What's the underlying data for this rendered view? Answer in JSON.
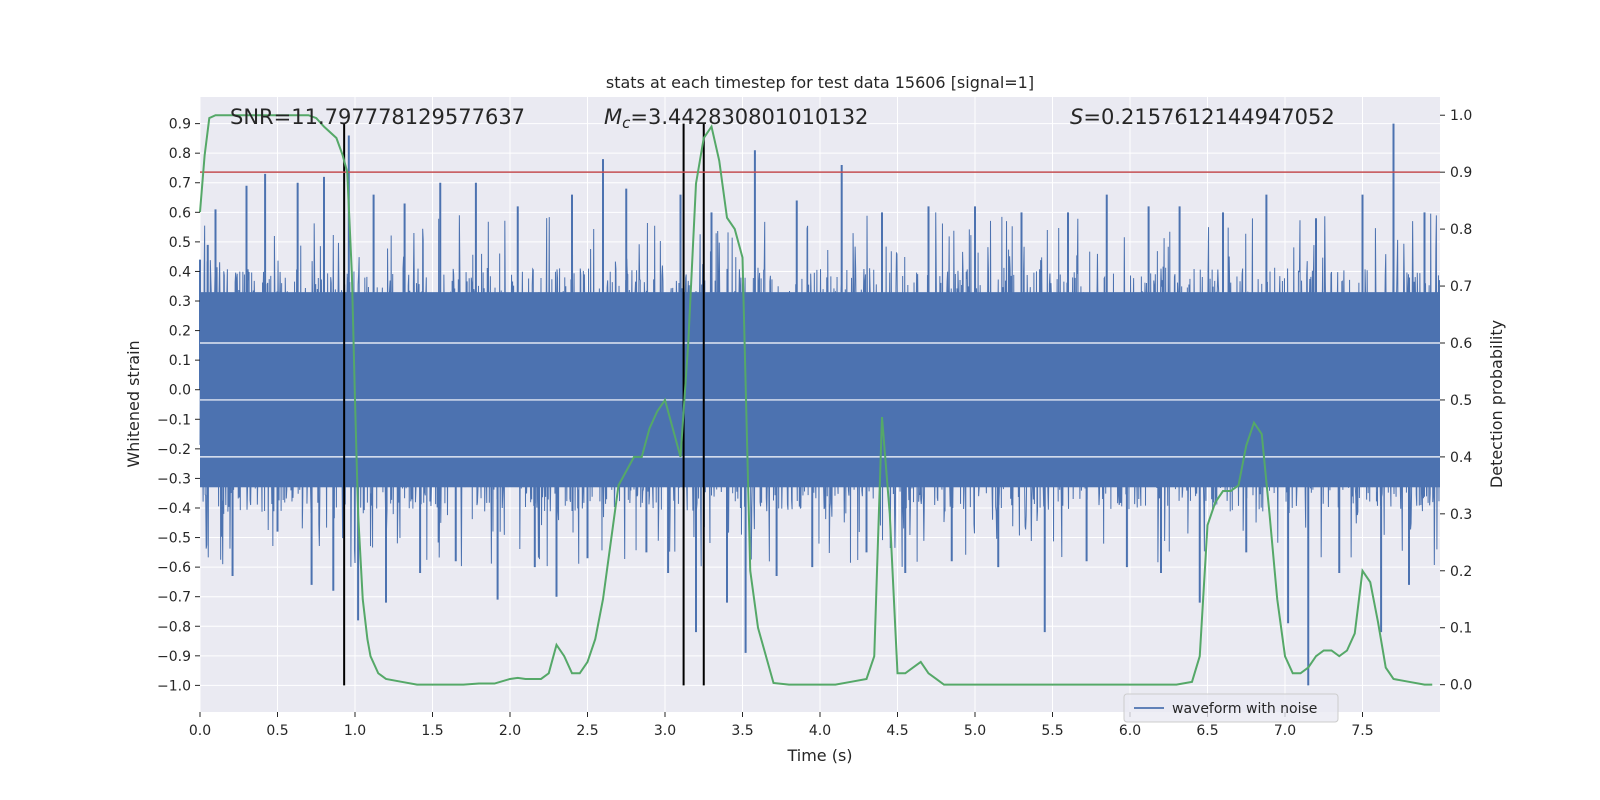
{
  "chart_data": {
    "type": "line",
    "title": "stats at each timestep for test data 15606 [signal=1]",
    "xlabel": "Time (s)",
    "ylabel": "Whitened strain",
    "y2label": "Detection probability",
    "xlim": [
      0.0,
      8.0
    ],
    "ylim": [
      -1.09,
      0.99
    ],
    "y2lim": [
      -0.048,
      1.032
    ],
    "x_ticks": [
      0.0,
      0.5,
      1.0,
      1.5,
      2.0,
      2.5,
      3.0,
      3.5,
      4.0,
      4.5,
      5.0,
      5.5,
      6.0,
      6.5,
      7.0,
      7.5
    ],
    "x_tick_labels": [
      "0.0",
      "0.5",
      "1.0",
      "1.5",
      "2.0",
      "2.5",
      "3.0",
      "3.5",
      "4.0",
      "4.5",
      "5.0",
      "5.5",
      "6.0",
      "6.5",
      "7.0",
      "7.5"
    ],
    "y_ticks": [
      0.9,
      0.8,
      0.7,
      0.6,
      0.5,
      0.4,
      0.3,
      0.2,
      0.1,
      0.0,
      -0.1,
      -0.2,
      -0.3,
      -0.4,
      -0.5,
      -0.6,
      -0.7,
      -0.8,
      -0.9,
      -1.0
    ],
    "y_tick_labels": [
      "0.9",
      "0.8",
      "0.7",
      "0.6",
      "0.5",
      "0.4",
      "0.3",
      "0.2",
      "0.1",
      "0.0",
      "−0.1",
      "−0.2",
      "−0.3",
      "−0.4",
      "−0.5",
      "−0.6",
      "−0.7",
      "−0.8",
      "−0.9",
      "−1.0"
    ],
    "y2_ticks": [
      1.0,
      0.9,
      0.8,
      0.7,
      0.6,
      0.5,
      0.4,
      0.3,
      0.2,
      0.1,
      0.0
    ],
    "y2_tick_labels": [
      "1.0",
      "0.9",
      "0.8",
      "0.7",
      "0.6",
      "0.5",
      "0.4",
      "0.3",
      "0.2",
      "0.1",
      "0.0"
    ],
    "grid": true,
    "legend_position": "lower-right",
    "annotations": {
      "snr": "SNR=11.797778129577637",
      "mc_symbol": "M",
      "mc_sub": "c",
      "mc_value": "=3.442830801010132",
      "s_symbol": "S",
      "s_value": "=0.2157612144947052"
    },
    "vertical_lines_x": [
      0.93,
      3.12,
      3.25
    ],
    "vertical_lines_range": [
      -1.0,
      0.9
    ],
    "threshold_line_y": 0.9,
    "series": [
      {
        "name": "waveform with noise",
        "color": "#4c72b0",
        "style": "dense noise waveform",
        "core_amplitude": 0.33,
        "spikes": [
          {
            "x": 0.0,
            "y": 0.44
          },
          {
            "x": 0.05,
            "y": 0.49
          },
          {
            "x": 0.1,
            "y": 0.61
          },
          {
            "x": 0.15,
            "y": -0.42
          },
          {
            "x": 0.21,
            "y": -0.63
          },
          {
            "x": 0.3,
            "y": 0.69
          },
          {
            "x": 0.42,
            "y": 0.73
          },
          {
            "x": 0.5,
            "y": -0.48
          },
          {
            "x": 0.63,
            "y": 0.7
          },
          {
            "x": 0.72,
            "y": -0.66
          },
          {
            "x": 0.8,
            "y": 0.72
          },
          {
            "x": 0.86,
            "y": -0.68
          },
          {
            "x": 0.96,
            "y": 0.86
          },
          {
            "x": 1.02,
            "y": -0.78
          },
          {
            "x": 1.12,
            "y": 0.66
          },
          {
            "x": 1.2,
            "y": -0.72
          },
          {
            "x": 1.32,
            "y": 0.63
          },
          {
            "x": 1.42,
            "y": -0.62
          },
          {
            "x": 1.55,
            "y": 0.7
          },
          {
            "x": 1.65,
            "y": -0.58
          },
          {
            "x": 1.78,
            "y": 0.7
          },
          {
            "x": 1.92,
            "y": -0.71
          },
          {
            "x": 2.05,
            "y": 0.62
          },
          {
            "x": 2.16,
            "y": -0.6
          },
          {
            "x": 2.3,
            "y": -0.7
          },
          {
            "x": 2.4,
            "y": 0.66
          },
          {
            "x": 2.5,
            "y": -0.57
          },
          {
            "x": 2.6,
            "y": 0.78
          },
          {
            "x": 2.75,
            "y": 0.68
          },
          {
            "x": 2.88,
            "y": -0.55
          },
          {
            "x": 3.02,
            "y": -0.62
          },
          {
            "x": 3.1,
            "y": 0.66
          },
          {
            "x": 3.2,
            "y": -0.82
          },
          {
            "x": 3.3,
            "y": 0.6
          },
          {
            "x": 3.4,
            "y": -0.72
          },
          {
            "x": 3.52,
            "y": -0.89
          },
          {
            "x": 3.58,
            "y": 0.81
          },
          {
            "x": 3.72,
            "y": -0.63
          },
          {
            "x": 3.85,
            "y": 0.64
          },
          {
            "x": 3.95,
            "y": -0.6
          },
          {
            "x": 4.14,
            "y": 0.76
          },
          {
            "x": 4.3,
            "y": -0.55
          },
          {
            "x": 4.4,
            "y": 0.6
          },
          {
            "x": 4.55,
            "y": -0.62
          },
          {
            "x": 4.7,
            "y": 0.62
          },
          {
            "x": 4.85,
            "y": -0.58
          },
          {
            "x": 5.0,
            "y": 0.62
          },
          {
            "x": 5.15,
            "y": -0.6
          },
          {
            "x": 5.3,
            "y": 0.6
          },
          {
            "x": 5.45,
            "y": -0.82
          },
          {
            "x": 5.6,
            "y": 0.6
          },
          {
            "x": 5.72,
            "y": -0.58
          },
          {
            "x": 5.85,
            "y": 0.66
          },
          {
            "x": 5.98,
            "y": -0.6
          },
          {
            "x": 6.12,
            "y": 0.62
          },
          {
            "x": 6.2,
            "y": -0.62
          },
          {
            "x": 6.32,
            "y": 0.62
          },
          {
            "x": 6.45,
            "y": -0.72
          },
          {
            "x": 6.6,
            "y": 0.6
          },
          {
            "x": 6.75,
            "y": -0.55
          },
          {
            "x": 6.88,
            "y": 0.66
          },
          {
            "x": 7.02,
            "y": -0.79
          },
          {
            "x": 7.15,
            "y": -1.0
          },
          {
            "x": 7.2,
            "y": 0.58
          },
          {
            "x": 7.35,
            "y": -0.62
          },
          {
            "x": 7.5,
            "y": 0.66
          },
          {
            "x": 7.62,
            "y": -0.82
          },
          {
            "x": 7.7,
            "y": 0.9
          },
          {
            "x": 7.8,
            "y": -0.66
          },
          {
            "x": 7.9,
            "y": 0.6
          }
        ]
      },
      {
        "name": "",
        "color": "#55a868",
        "axis": "right",
        "x": [
          0.0,
          0.03,
          0.06,
          0.1,
          0.2,
          0.4,
          0.6,
          0.7,
          0.75,
          0.8,
          0.88,
          0.92,
          0.95,
          0.98,
          1.0,
          1.02,
          1.05,
          1.08,
          1.1,
          1.15,
          1.2,
          1.3,
          1.4,
          1.5,
          1.6,
          1.7,
          1.8,
          1.9,
          2.0,
          2.05,
          2.1,
          2.2,
          2.25,
          2.3,
          2.35,
          2.4,
          2.45,
          2.5,
          2.55,
          2.6,
          2.65,
          2.7,
          2.8,
          2.85,
          2.9,
          2.95,
          3.0,
          3.05,
          3.1,
          3.15,
          3.2,
          3.25,
          3.3,
          3.35,
          3.4,
          3.45,
          3.5,
          3.55,
          3.6,
          3.7,
          3.8,
          3.9,
          4.0,
          4.1,
          4.2,
          4.3,
          4.35,
          4.4,
          4.45,
          4.5,
          4.55,
          4.6,
          4.65,
          4.7,
          4.75,
          4.8,
          4.9,
          5.0,
          5.5,
          6.0,
          6.3,
          6.4,
          6.45,
          6.5,
          6.55,
          6.6,
          6.65,
          6.7,
          6.75,
          6.8,
          6.85,
          6.9,
          6.95,
          7.0,
          7.05,
          7.1,
          7.15,
          7.2,
          7.25,
          7.3,
          7.35,
          7.4,
          7.45,
          7.5,
          7.55,
          7.6,
          7.65,
          7.7,
          7.8,
          7.9,
          7.95
        ],
        "y": [
          0.83,
          0.93,
          0.995,
          1.0,
          1.0,
          1.0,
          1.0,
          1.0,
          0.995,
          0.98,
          0.96,
          0.93,
          0.9,
          0.72,
          0.5,
          0.3,
          0.15,
          0.08,
          0.05,
          0.02,
          0.01,
          0.005,
          0.0,
          0.0,
          0.0,
          0.0,
          0.002,
          0.002,
          0.01,
          0.012,
          0.01,
          0.01,
          0.02,
          0.07,
          0.05,
          0.02,
          0.02,
          0.04,
          0.08,
          0.15,
          0.25,
          0.35,
          0.4,
          0.4,
          0.45,
          0.48,
          0.5,
          0.45,
          0.4,
          0.6,
          0.88,
          0.96,
          0.98,
          0.92,
          0.82,
          0.8,
          0.75,
          0.2,
          0.1,
          0.003,
          0.0,
          0.0,
          0.0,
          0.0,
          0.005,
          0.01,
          0.05,
          0.47,
          0.3,
          0.02,
          0.02,
          0.03,
          0.04,
          0.02,
          0.01,
          0.0,
          0.0,
          0.0,
          0.0,
          0.0,
          0.0,
          0.005,
          0.05,
          0.28,
          0.32,
          0.34,
          0.34,
          0.35,
          0.42,
          0.46,
          0.44,
          0.3,
          0.15,
          0.05,
          0.02,
          0.02,
          0.03,
          0.05,
          0.06,
          0.06,
          0.05,
          0.06,
          0.09,
          0.2,
          0.18,
          0.11,
          0.03,
          0.01,
          0.005,
          0.0,
          0.0
        ],
        "x_sampled": true
      },
      {
        "name": "",
        "color": "#c44e52",
        "axis": "right",
        "style": "horizontal threshold",
        "y": 0.9
      }
    ]
  }
}
